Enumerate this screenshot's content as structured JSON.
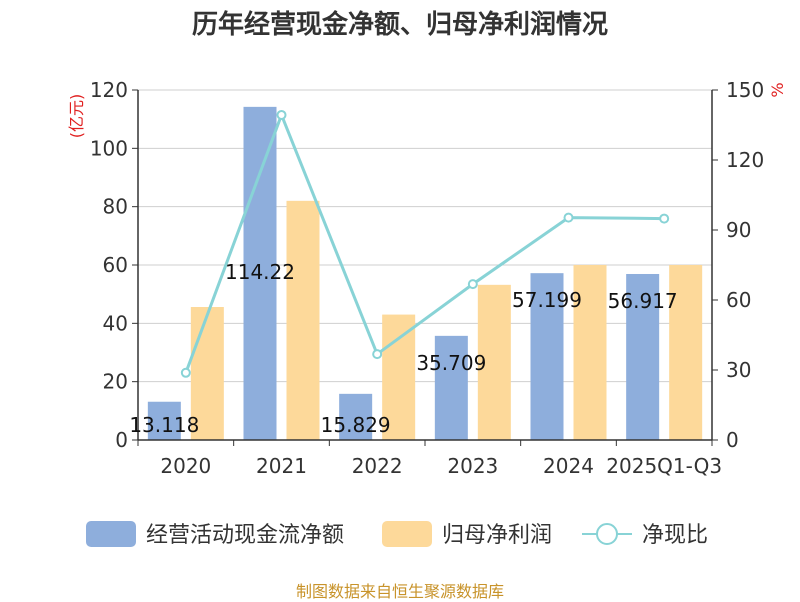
{
  "chart_data": {
    "type": "bar",
    "title": "历年经营现金净额、归母净利润情况",
    "categories": [
      "2020",
      "2021",
      "2022",
      "2023",
      "2024",
      "2025Q1-Q3"
    ],
    "series": [
      {
        "name": "经营活动现金流净额",
        "kind": "bar",
        "axis": "left",
        "color": "#8eaedc",
        "values": [
          13.118,
          114.22,
          15.829,
          35.709,
          57.199,
          56.917
        ],
        "labels": [
          "13.118",
          "114.22",
          "15.829",
          "35.709",
          "57.199",
          "56.917"
        ]
      },
      {
        "name": "归母净利润",
        "kind": "bar",
        "axis": "left",
        "color": "#fdd99a",
        "values": [
          45.6,
          82.0,
          43.0,
          53.2,
          60.0,
          60.0
        ]
      },
      {
        "name": "净现比",
        "kind": "line",
        "axis": "right",
        "color": "#88d3d6",
        "values": [
          28.8,
          139.3,
          36.8,
          66.8,
          95.3,
          94.9
        ]
      }
    ],
    "y_left": {
      "label": "(亿元)",
      "ylim": [
        0,
        120
      ],
      "ticks": [
        0,
        20,
        40,
        60,
        80,
        100,
        120
      ]
    },
    "y_right": {
      "label": "%",
      "ylim": [
        0,
        150
      ],
      "ticks": [
        0,
        30,
        60,
        90,
        120,
        150
      ]
    },
    "legend_position": "bottom",
    "grid": true
  },
  "source_note": "制图数据来自恒生聚源数据库"
}
